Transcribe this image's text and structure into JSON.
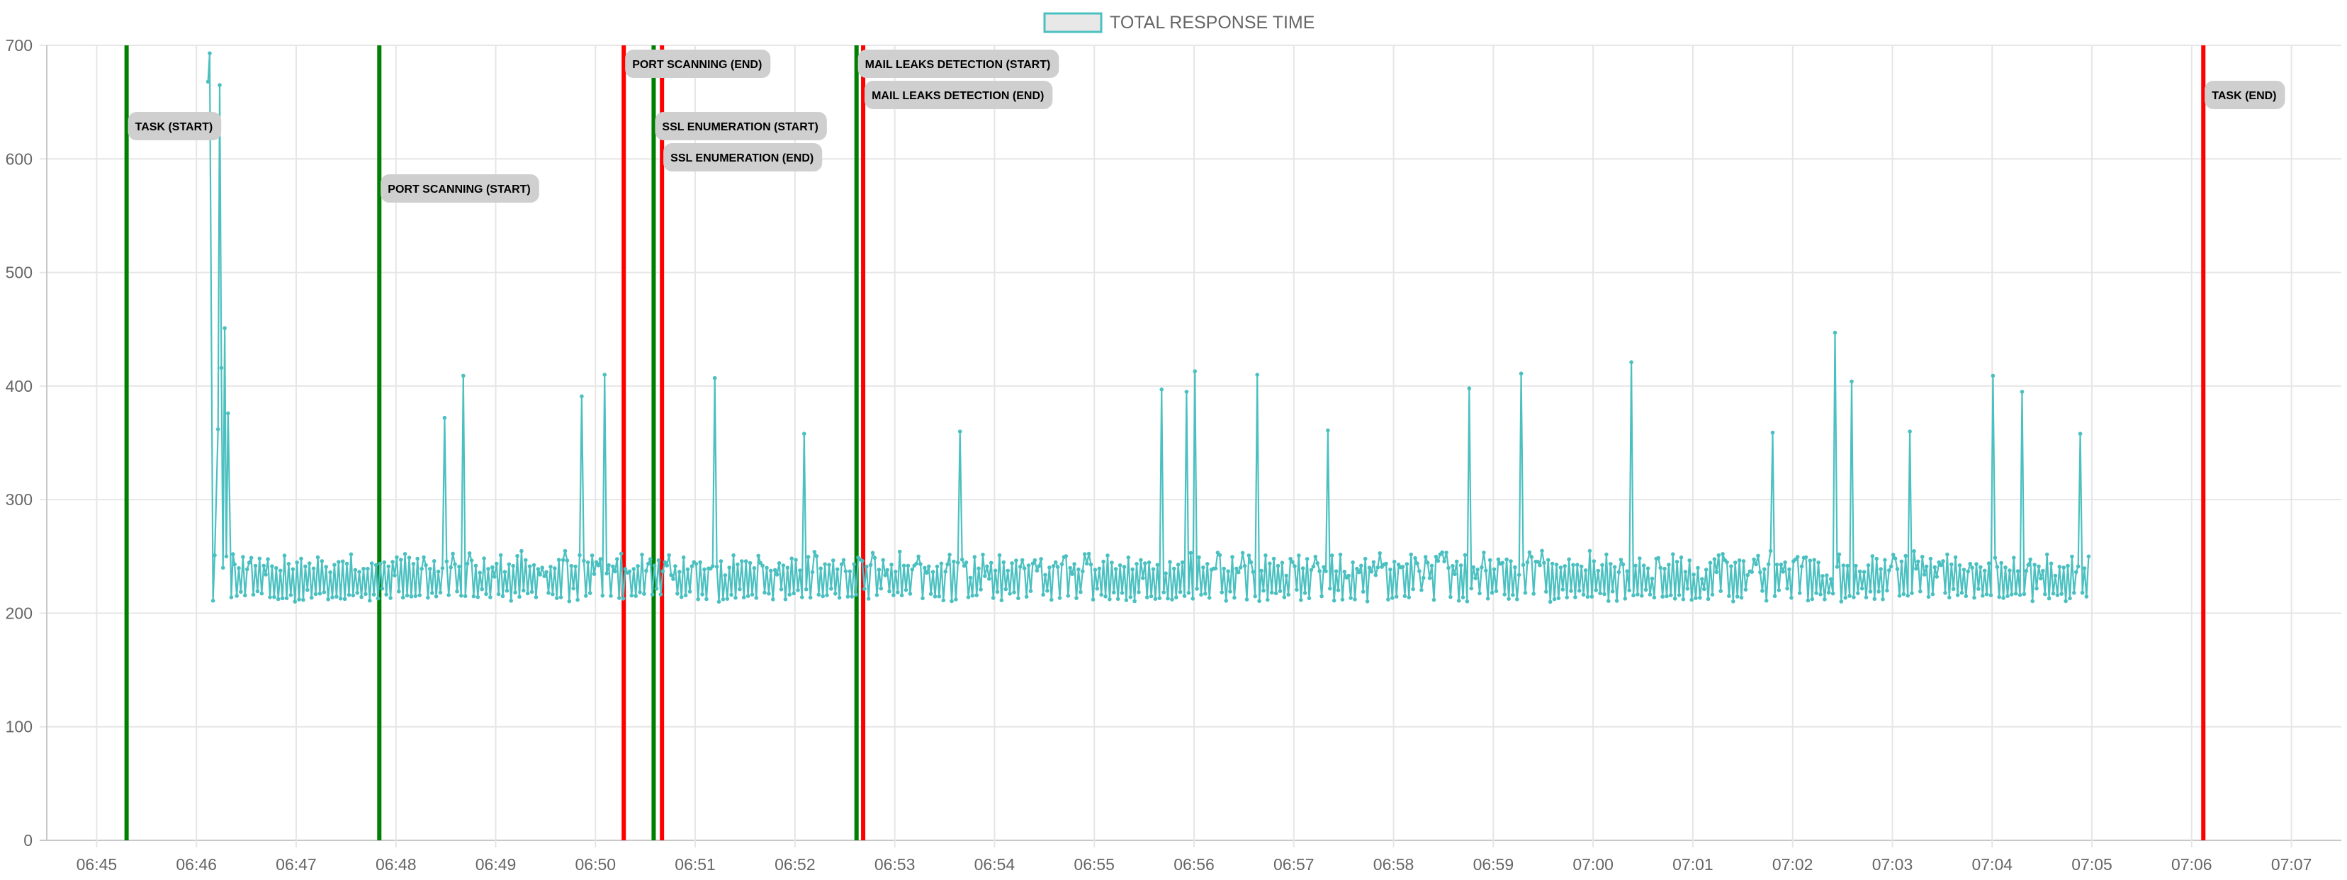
{
  "chart_data": {
    "type": "line",
    "title": "",
    "xlabel": "",
    "ylabel": "",
    "ylim": [
      0,
      700
    ],
    "yticks": [
      "0",
      "100",
      "200",
      "300",
      "400",
      "500",
      "600",
      "700"
    ],
    "xlim": [
      "06:44:30",
      "07:07:30"
    ],
    "xticks": [
      "06:45",
      "06:46",
      "06:47",
      "06:48",
      "06:49",
      "06:50",
      "06:51",
      "06:52",
      "06:53",
      "06:54",
      "06:55",
      "06:56",
      "06:57",
      "06:58",
      "06:59",
      "07:00",
      "07:01",
      "07:02",
      "07:03",
      "07:04",
      "07:05",
      "07:06",
      "07:07"
    ],
    "grid": true,
    "legend": {
      "position": "top-center",
      "entries": [
        "TOTAL RESPONSE TIME"
      ]
    },
    "series": [
      {
        "name": "TOTAL RESPONSE TIME",
        "color": "#4bc0c0",
        "sample_interval_seconds": 1.25,
        "start": "06:46:07",
        "points": [
          [
            "06:46:07",
            668
          ],
          [
            "06:46:08",
            693
          ],
          [
            "06:46:10",
            211
          ],
          [
            "06:46:11",
            251
          ],
          [
            "06:46:13",
            362
          ],
          [
            "06:46:14",
            665
          ],
          [
            "06:46:15",
            416
          ],
          [
            "06:46:16",
            240
          ],
          [
            "06:46:17",
            451
          ],
          [
            "06:46:18",
            250
          ],
          [
            "06:46:19",
            376
          ],
          [
            "06:46:21",
            214
          ],
          [
            "06:46:22",
            252
          ],
          [
            "06:46:23",
            243
          ]
        ],
        "spikes": [
          [
            "06:48:29",
            372
          ],
          [
            "06:48:41",
            409
          ],
          [
            "06:49:52",
            391
          ],
          [
            "06:50:06",
            410
          ],
          [
            "06:51:12",
            407
          ],
          [
            "06:52:06",
            358
          ],
          [
            "06:53:39",
            360
          ],
          [
            "06:55:40",
            397
          ],
          [
            "06:55:55",
            395
          ],
          [
            "06:56:00",
            413
          ],
          [
            "06:56:38",
            410
          ],
          [
            "06:57:21",
            361
          ],
          [
            "06:58:46",
            398
          ],
          [
            "06:59:17",
            411
          ],
          [
            "07:00:23",
            421
          ],
          [
            "07:01:48",
            359
          ],
          [
            "07:02:26",
            447
          ],
          [
            "07:02:35",
            404
          ],
          [
            "07:03:10",
            360
          ],
          [
            "07:04:00",
            409
          ],
          [
            "07:04:18",
            395
          ],
          [
            "07:04:53",
            358
          ]
        ],
        "baseline": {
          "low": 210,
          "high": 258
        },
        "end": [
          "07:04:58",
          250
        ]
      }
    ],
    "annotations": [
      {
        "time": "06:45:18",
        "label": "TASK (START)",
        "color": "#008000"
      },
      {
        "time": "06:47:50",
        "label": "PORT SCANNING (START)",
        "color": "#008000"
      },
      {
        "time": "06:50:17",
        "label": "PORT SCANNING (END)",
        "color": "#ff0000"
      },
      {
        "time": "06:50:35",
        "label": "SSL ENUMERATION (START)",
        "color": "#008000"
      },
      {
        "time": "06:50:40",
        "label": "SSL ENUMERATION (END)",
        "color": "#ff0000"
      },
      {
        "time": "06:52:37",
        "label": "MAIL LEAKS DETECTION (START)",
        "color": "#008000"
      },
      {
        "time": "06:52:41",
        "label": "MAIL LEAKS DETECTION (END)",
        "color": "#ff0000"
      },
      {
        "time": "07:06:07",
        "label": "TASK (END)",
        "color": "#ff0000"
      }
    ]
  }
}
